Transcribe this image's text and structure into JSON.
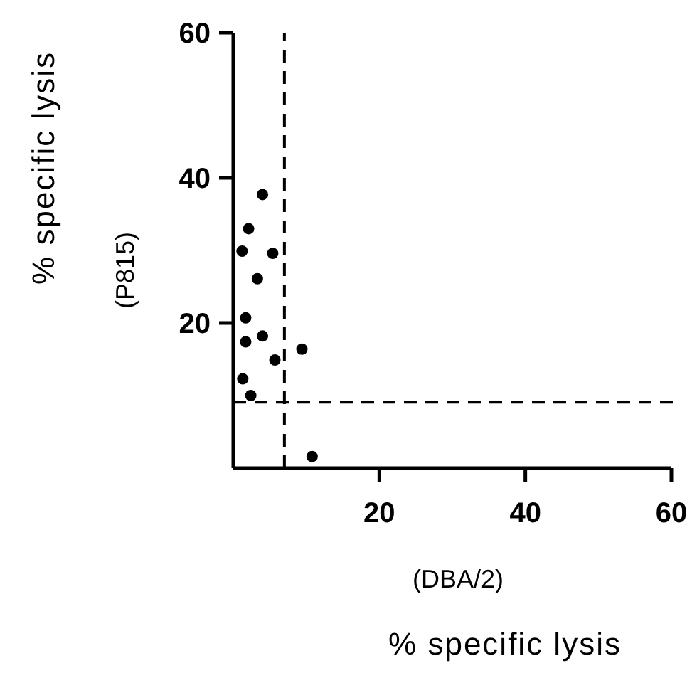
{
  "chart_data": {
    "type": "scatter",
    "xlabel": "(DBA/2)\n% specific lysis",
    "ylabel": "% specific lysis\n(P815)",
    "xlim": [
      0,
      60
    ],
    "ylim": [
      0,
      60
    ],
    "xticks": [
      20,
      40,
      60
    ],
    "yticks": [
      20,
      40,
      60
    ],
    "marker": "circle",
    "grid": false,
    "series": [
      {
        "color": "#000000",
        "x": [
          4.0,
          2.1,
          1.2,
          5.4,
          3.3,
          1.7,
          1.7,
          4.0,
          9.4,
          5.7,
          1.3,
          2.4,
          10.8
        ],
        "values": [
          37.7,
          33.0,
          29.9,
          29.6,
          26.1,
          20.7,
          17.4,
          18.2,
          16.4,
          14.9,
          12.3,
          10.0,
          1.6
        ]
      }
    ],
    "ref_lines": [
      {
        "axis": "x",
        "value": 7.0,
        "line_style": "dashed"
      },
      {
        "axis": "y",
        "value": 9.1,
        "line_style": "dashed"
      }
    ]
  }
}
